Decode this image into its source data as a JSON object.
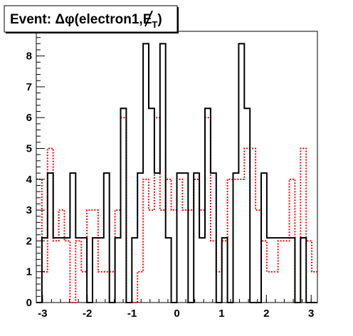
{
  "chart_data": {
    "type": "histogram",
    "title": "Event: Δφ(electron1,E̸T)",
    "title_parts": {
      "prefix": "Event: Δφ(electron1,",
      "met_symbol": "E",
      "met_subscript": "T",
      "suffix": ")"
    },
    "xlabel": "",
    "ylabel": "",
    "xlim": [
      -3.14,
      3.14
    ],
    "ylim": [
      0,
      8.8
    ],
    "x_ticks": [
      "-3",
      "-2",
      "-1",
      "0",
      "1",
      "2",
      "3"
    ],
    "y_ticks": [
      "0",
      "1",
      "2",
      "3",
      "4",
      "5",
      "6",
      "7",
      "8"
    ],
    "n_bins": 50,
    "series": [
      {
        "style": "solid",
        "color": "#000000",
        "values": [
          0,
          2.1,
          4.2,
          2.1,
          2.1,
          2.1,
          4.2,
          2.1,
          2.1,
          0,
          2.1,
          2.1,
          4.2,
          0,
          2.1,
          6.3,
          0,
          2.1,
          4.2,
          8.4,
          6.3,
          4.2,
          8.4,
          2.1,
          0,
          4.2,
          4.2,
          0,
          4.2,
          2.1,
          6.3,
          4.2,
          0,
          2.1,
          0,
          4.2,
          8.4,
          6.3,
          0,
          0,
          4.2,
          2.1,
          2.1,
          2.1,
          2.1,
          2.1,
          0,
          2.1,
          0,
          0
        ]
      },
      {
        "style": "dotted",
        "color": "#ff0000",
        "values": [
          4,
          1,
          5,
          2,
          3,
          2,
          0,
          2,
          1,
          3,
          3,
          1,
          1,
          1,
          3,
          6,
          0,
          0,
          1,
          4,
          3,
          6,
          3,
          4,
          3,
          4,
          3,
          3,
          4,
          3,
          6,
          2,
          1,
          2,
          4,
          4,
          4,
          5,
          5,
          3,
          2,
          1,
          1,
          2,
          2,
          4,
          0,
          5,
          2,
          1
        ]
      }
    ],
    "grid": false,
    "legend": "none"
  }
}
